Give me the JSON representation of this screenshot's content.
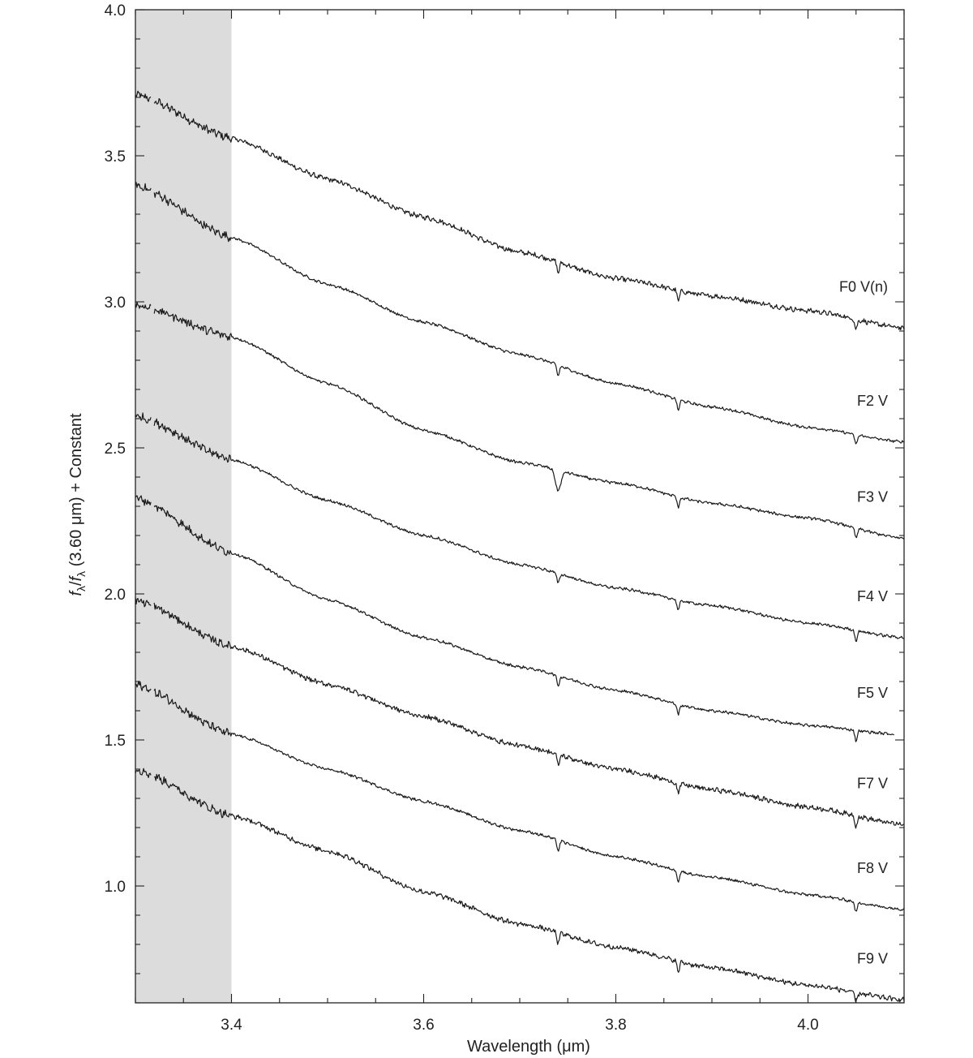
{
  "chart_data": {
    "type": "line",
    "xlabel": "Wavelength (μm)",
    "ylabel": "f_λ/f_λ (3.60 μm) + Constant",
    "ylabel_parts": {
      "f1": "f",
      "sub1": "λ",
      "slash": "/",
      "f2": "f",
      "sub2": "λ",
      "rest": " (3.60 μm) + Constant"
    },
    "xlim": [
      3.3,
      4.1
    ],
    "ylim": [
      0.6,
      4.0
    ],
    "x_ticks": [
      3.4,
      3.6,
      3.8,
      4.0
    ],
    "x_tick_labels": [
      "3.4",
      "3.6",
      "3.8",
      "4.0"
    ],
    "y_ticks": [
      1.0,
      1.5,
      2.0,
      2.5,
      3.0,
      3.5,
      4.0
    ],
    "y_tick_labels": [
      "1.0",
      "1.5",
      "2.0",
      "2.5",
      "3.0",
      "3.5",
      "4.0"
    ],
    "shaded_region_x": [
      3.3,
      3.4
    ],
    "shade_color": "#dcdcdc",
    "line_color": "#1a1a1a",
    "grid": false,
    "absorption_lines_um": [
      3.74,
      3.865,
      4.05
    ],
    "series": [
      {
        "name": "F0 V(n)",
        "x": [
          3.3,
          3.4,
          3.5,
          3.6,
          3.7,
          3.8,
          3.9,
          4.0,
          4.1
        ],
        "y": [
          3.71,
          3.56,
          3.42,
          3.29,
          3.17,
          3.08,
          3.02,
          2.97,
          2.91
        ]
      },
      {
        "name": "F2 V",
        "x": [
          3.3,
          3.4,
          3.5,
          3.6,
          3.7,
          3.8,
          3.9,
          4.0,
          4.1
        ],
        "y": [
          3.4,
          3.22,
          3.06,
          2.93,
          2.82,
          2.72,
          2.64,
          2.57,
          2.52
        ]
      },
      {
        "name": "F3 V",
        "x": [
          3.3,
          3.4,
          3.5,
          3.6,
          3.7,
          3.8,
          3.9,
          4.0,
          4.1
        ],
        "y": [
          2.99,
          2.88,
          2.72,
          2.56,
          2.45,
          2.38,
          2.31,
          2.26,
          2.19
        ]
      },
      {
        "name": "F4 V",
        "x": [
          3.3,
          3.4,
          3.5,
          3.6,
          3.7,
          3.8,
          3.9,
          4.0,
          4.1
        ],
        "y": [
          2.61,
          2.46,
          2.32,
          2.2,
          2.1,
          2.02,
          1.96,
          1.9,
          1.85
        ]
      },
      {
        "name": "F5 V",
        "x": [
          3.3,
          3.4,
          3.5,
          3.6,
          3.7,
          3.8,
          3.9,
          4.0,
          4.09
        ],
        "y": [
          2.33,
          2.14,
          1.98,
          1.85,
          1.75,
          1.67,
          1.6,
          1.55,
          1.52
        ]
      },
      {
        "name": "F7 V",
        "x": [
          3.3,
          3.4,
          3.5,
          3.6,
          3.7,
          3.8,
          3.9,
          4.0,
          4.1
        ],
        "y": [
          1.98,
          1.82,
          1.69,
          1.58,
          1.48,
          1.4,
          1.33,
          1.27,
          1.21
        ]
      },
      {
        "name": "F8 V",
        "x": [
          3.3,
          3.4,
          3.5,
          3.6,
          3.7,
          3.8,
          3.9,
          4.0,
          4.1
        ],
        "y": [
          1.69,
          1.52,
          1.4,
          1.29,
          1.19,
          1.1,
          1.03,
          0.97,
          0.92
        ]
      },
      {
        "name": "F9 V",
        "x": [
          3.3,
          3.4,
          3.5,
          3.6,
          3.7,
          3.8,
          3.9,
          4.0,
          4.1
        ],
        "y": [
          1.4,
          1.24,
          1.12,
          0.98,
          0.87,
          0.79,
          0.72,
          0.66,
          0.61
        ]
      }
    ]
  }
}
